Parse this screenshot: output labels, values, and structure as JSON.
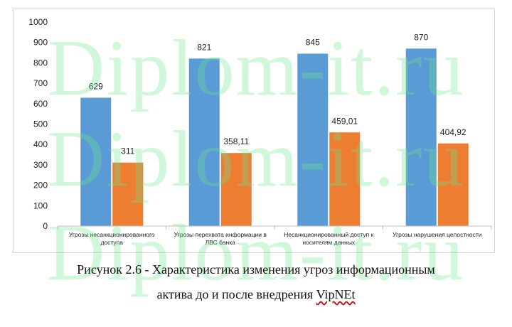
{
  "watermark_text": "Diplom-it.ru",
  "caption": {
    "line1": "Рисунок 2.6 - Характеристика изменения угроз информационным",
    "line2_prefix": "актива до и после внедрения ",
    "line2_link": "VipNEt"
  },
  "chart_data": {
    "type": "bar",
    "title": "",
    "xlabel": "",
    "ylabel": "",
    "ylim": [
      0,
      1000
    ],
    "yticks": [
      0,
      100,
      200,
      300,
      400,
      500,
      600,
      700,
      800,
      900,
      1000
    ],
    "grid": false,
    "legend": "none",
    "categories": [
      [
        "Угрозы несанкционированного",
        "доступа"
      ],
      [
        "Угрозы перехвата  информации в",
        "ЛВС банка"
      ],
      [
        "Несанкционированный доступ  к",
        "носителям данных"
      ],
      [
        "Угрозы нарушения целостности"
      ]
    ],
    "series": [
      {
        "color": "#5b9bd5",
        "values": [
          629,
          821,
          845,
          870
        ],
        "labels": [
          "629",
          "821",
          "845",
          "870"
        ]
      },
      {
        "color": "#ed7d31",
        "values": [
          311,
          358.11,
          459.01,
          404.92
        ],
        "labels": [
          "311",
          "358,11",
          "459,01",
          "404,92"
        ]
      }
    ]
  }
}
